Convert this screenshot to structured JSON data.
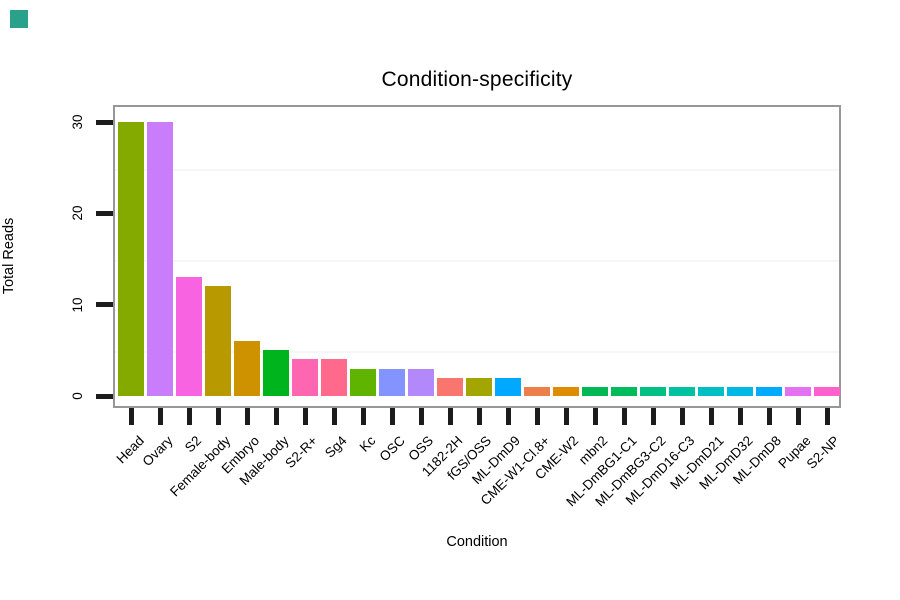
{
  "corner_marker": {
    "color": "#2aa18b"
  },
  "chart_data": {
    "type": "bar",
    "title": "Condition-specificity",
    "xlabel": "Condition",
    "ylabel": "Total Reads",
    "ylim": [
      0,
      30
    ],
    "yticks": [
      0,
      10,
      20,
      30
    ],
    "ytick_labels": [
      "0",
      "10",
      "20",
      "30"
    ],
    "grid_minor": [
      5,
      15,
      25
    ],
    "legend": "none",
    "categories": [
      "Head",
      "Ovary",
      "S2",
      "Female-body",
      "Embryo",
      "Male-body",
      "S2-R+",
      "Sg4",
      "Kc",
      "OSC",
      "OSS",
      "1182-2H",
      "fGS/OSS",
      "ML-DmD9",
      "CME-W1-Cl.8+",
      "CME-W2",
      "mbn2",
      "ML-DmBG1-C1",
      "ML-DmBG3-C2",
      "ML-DmD16-C3",
      "ML-DmD21",
      "ML-DmD32",
      "ML-DmD8",
      "Pupae",
      "S2-NP"
    ],
    "values": [
      30,
      30,
      13,
      12,
      6,
      5,
      4,
      4,
      3,
      3,
      3,
      2,
      2,
      2,
      1,
      1,
      1,
      1,
      1,
      1,
      1,
      1,
      1,
      1,
      1
    ],
    "bar_colors": [
      "#84AA00",
      "#C97DFB",
      "#F763E0",
      "#B89900",
      "#CE9100",
      "#00B41E",
      "#FF66B2",
      "#FF6A8C",
      "#5FB400",
      "#8494FF",
      "#B388FB",
      "#F8766D",
      "#A3A500",
      "#00A9FF",
      "#ED804A",
      "#DE8C00",
      "#00B954",
      "#00BC5C",
      "#00C083",
      "#00C1A0",
      "#00BFC4",
      "#00B8E5",
      "#00ABFD",
      "#E471F1",
      "#FC61CE"
    ],
    "panel_border_color": "#979797",
    "tick_color": "#1c1c1c",
    "minor_grid_color": "#f6f6f6",
    "text_color": "#000000"
  }
}
